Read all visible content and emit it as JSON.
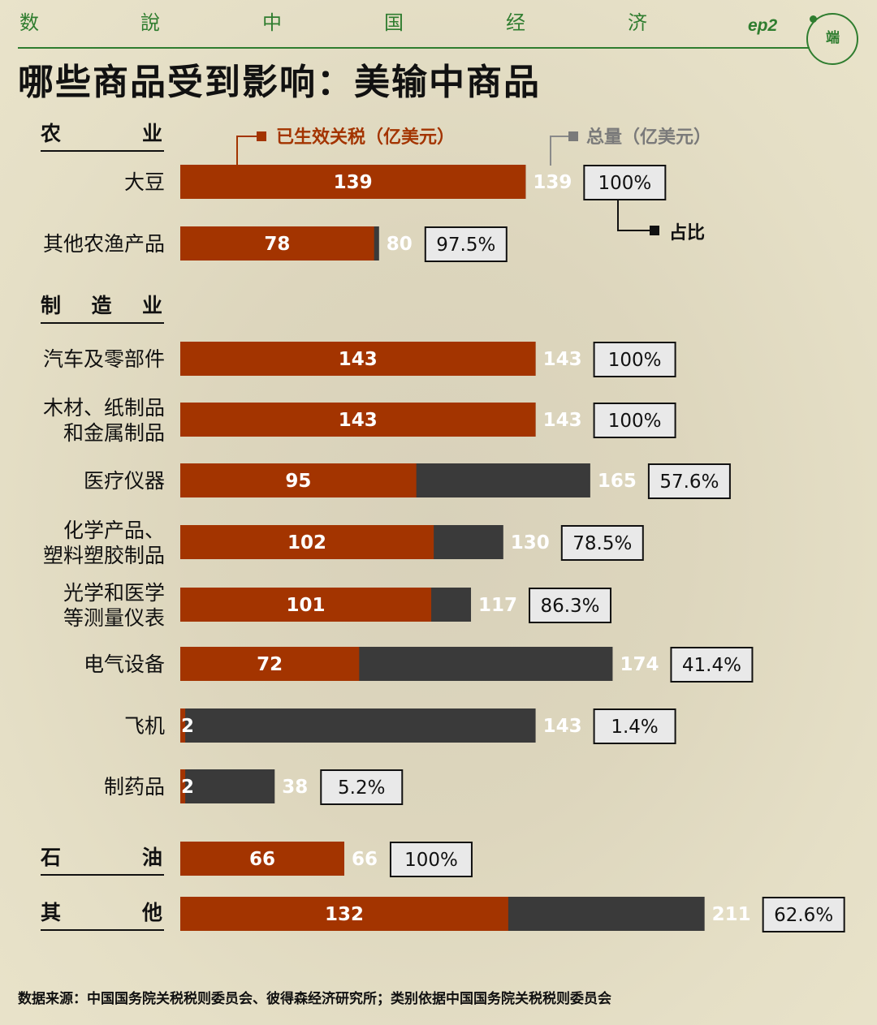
{
  "header": {
    "series_chars": [
      "数",
      "說",
      "中",
      "国",
      "经",
      "济"
    ],
    "episode": "ep2",
    "logo_text": "端"
  },
  "title": "哪些商品受到影响：美输中商品",
  "legend": {
    "tariff": "已生效关税（亿美元）",
    "total": "总量（亿美元）",
    "share": "占比"
  },
  "colors": {
    "tariff": "#a33400",
    "total": "#3a3a3a",
    "value_label_outside": "#ffffff",
    "accent_green": "#2f7d2f"
  },
  "source": "数据来源：中国国务院关税税则委员会、彼得森经济研究所；类别依据中国国务院关税税则委员会",
  "chart_data": {
    "type": "bar",
    "orientation": "horizontal",
    "stacked": "overlay",
    "xlim": [
      0,
      211
    ],
    "series": [
      {
        "name": "已生效关税（亿美元）",
        "key": "tariff"
      },
      {
        "name": "总量（亿美元）",
        "key": "total"
      }
    ],
    "groups": [
      {
        "name": "农　　业",
        "items": [
          {
            "label": [
              "大豆"
            ],
            "tariff": 139,
            "total": 139,
            "share": "100%"
          },
          {
            "label": [
              "其他农渔产品"
            ],
            "tariff": 78,
            "total": 80,
            "share": "97.5%"
          }
        ]
      },
      {
        "name": "制　造　业",
        "items": [
          {
            "label": [
              "汽车及零部件"
            ],
            "tariff": 143,
            "total": 143,
            "share": "100%"
          },
          {
            "label": [
              "木材、纸制品",
              "和金属制品"
            ],
            "tariff": 143,
            "total": 143,
            "share": "100%"
          },
          {
            "label": [
              "医疗仪器"
            ],
            "tariff": 95,
            "total": 165,
            "share": "57.6%"
          },
          {
            "label": [
              "化学产品、",
              "塑料塑胶制品"
            ],
            "tariff": 102,
            "total": 130,
            "share": "78.5%"
          },
          {
            "label": [
              "光学和医学",
              "等测量仪表"
            ],
            "tariff": 101,
            "total": 117,
            "share": "86.3%"
          },
          {
            "label": [
              "电气设备"
            ],
            "tariff": 72,
            "total": 174,
            "share": "41.4%"
          },
          {
            "label": [
              "飞机"
            ],
            "tariff": 2,
            "total": 143,
            "share": "1.4%"
          },
          {
            "label": [
              "制药品"
            ],
            "tariff": 2,
            "total": 38,
            "share": "5.2%"
          }
        ]
      },
      {
        "name": "石　　油",
        "items": [
          {
            "label": [],
            "tariff": 66,
            "total": 66,
            "share": "100%"
          }
        ]
      },
      {
        "name": "其　　他",
        "items": [
          {
            "label": [],
            "tariff": 132,
            "total": 211,
            "share": "62.6%"
          }
        ]
      }
    ]
  }
}
